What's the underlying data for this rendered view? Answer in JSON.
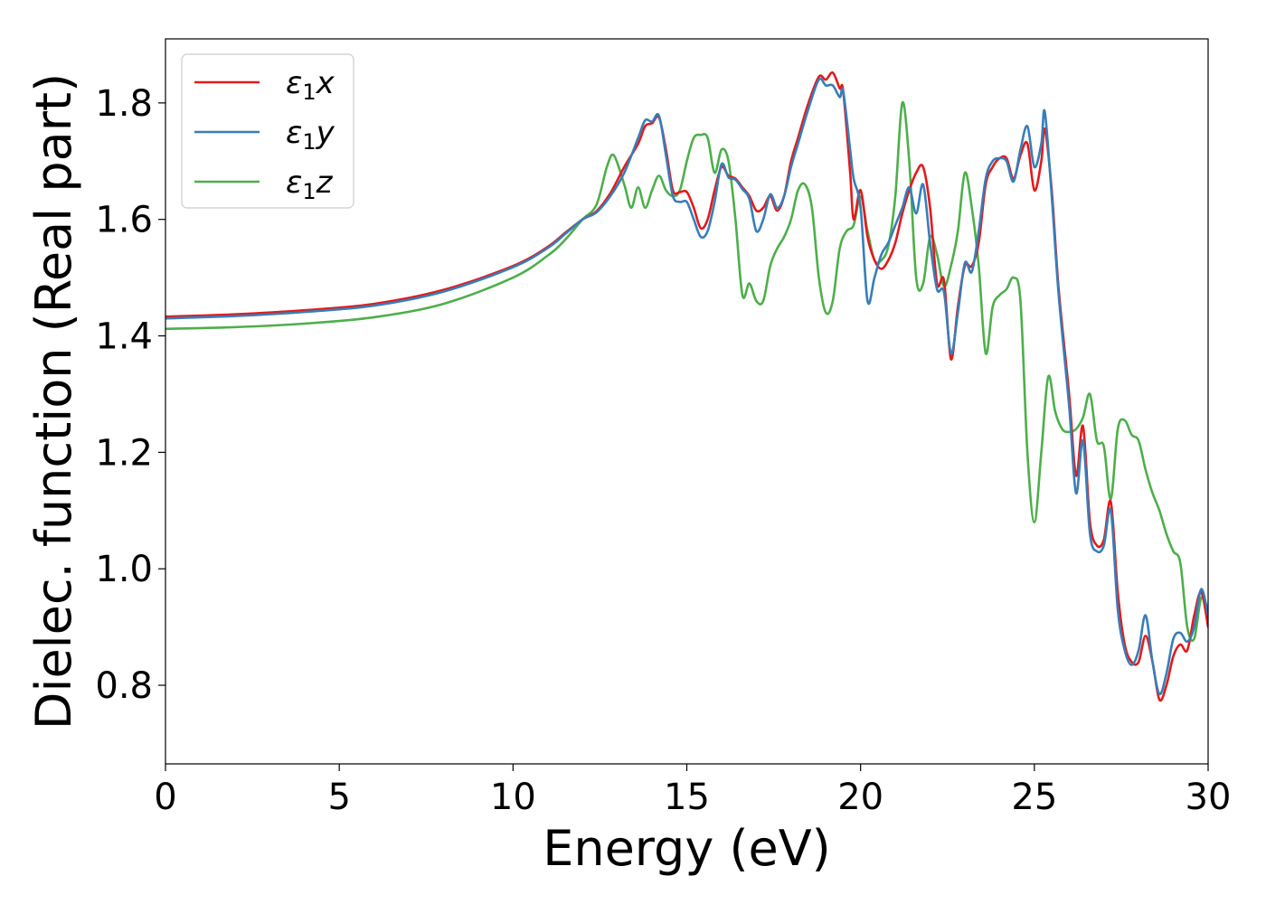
{
  "chart_data": {
    "type": "line",
    "title": "",
    "xlabel": "Energy (eV)",
    "ylabel": "Dielec. function (Real part)",
    "xlim": [
      0,
      30
    ],
    "ylim": [
      0.665,
      1.91
    ],
    "xticks": [
      0,
      5,
      10,
      15,
      20,
      25,
      30
    ],
    "yticks": [
      0.8,
      1.0,
      1.2,
      1.4,
      1.6,
      1.8
    ],
    "grid": false,
    "legend_position": "top-left",
    "series": [
      {
        "name": "ε1x",
        "legend_base": "ε",
        "legend_sub": "1",
        "legend_suffix": "x",
        "color": "#e41a1c",
        "points": [
          [
            0,
            1.433
          ],
          [
            2,
            1.437
          ],
          [
            4,
            1.444
          ],
          [
            6,
            1.455
          ],
          [
            8,
            1.479
          ],
          [
            10,
            1.52
          ],
          [
            11,
            1.553
          ],
          [
            11.5,
            1.577
          ],
          [
            12,
            1.6
          ],
          [
            12.4,
            1.614
          ],
          [
            12.8,
            1.645
          ],
          [
            13.2,
            1.69
          ],
          [
            13.6,
            1.73
          ],
          [
            13.8,
            1.76
          ],
          [
            14,
            1.765
          ],
          [
            14.2,
            1.775
          ],
          [
            14.4,
            1.72
          ],
          [
            14.6,
            1.65
          ],
          [
            14.8,
            1.647
          ],
          [
            15,
            1.647
          ],
          [
            15.2,
            1.62
          ],
          [
            15.4,
            1.585
          ],
          [
            15.6,
            1.6
          ],
          [
            15.8,
            1.65
          ],
          [
            16,
            1.69
          ],
          [
            16.2,
            1.675
          ],
          [
            16.4,
            1.67
          ],
          [
            16.6,
            1.655
          ],
          [
            16.8,
            1.64
          ],
          [
            17,
            1.615
          ],
          [
            17.2,
            1.62
          ],
          [
            17.4,
            1.64
          ],
          [
            17.6,
            1.615
          ],
          [
            17.8,
            1.64
          ],
          [
            18,
            1.7
          ],
          [
            18.2,
            1.74
          ],
          [
            18.5,
            1.8
          ],
          [
            18.8,
            1.845
          ],
          [
            19,
            1.84
          ],
          [
            19.2,
            1.852
          ],
          [
            19.4,
            1.825
          ],
          [
            19.5,
            1.82
          ],
          [
            19.7,
            1.68
          ],
          [
            19.8,
            1.6
          ],
          [
            20,
            1.65
          ],
          [
            20.2,
            1.57
          ],
          [
            20.4,
            1.53
          ],
          [
            20.6,
            1.515
          ],
          [
            20.8,
            1.53
          ],
          [
            21,
            1.56
          ],
          [
            21.2,
            1.61
          ],
          [
            21.4,
            1.65
          ],
          [
            21.6,
            1.68
          ],
          [
            21.8,
            1.69
          ],
          [
            22,
            1.62
          ],
          [
            22.2,
            1.49
          ],
          [
            22.4,
            1.495
          ],
          [
            22.6,
            1.36
          ],
          [
            22.8,
            1.45
          ],
          [
            23,
            1.52
          ],
          [
            23.2,
            1.52
          ],
          [
            23.4,
            1.56
          ],
          [
            23.6,
            1.66
          ],
          [
            23.8,
            1.69
          ],
          [
            24,
            1.705
          ],
          [
            24.2,
            1.705
          ],
          [
            24.4,
            1.67
          ],
          [
            24.6,
            1.71
          ],
          [
            24.8,
            1.73
          ],
          [
            25,
            1.65
          ],
          [
            25.2,
            1.7
          ],
          [
            25.3,
            1.755
          ],
          [
            25.5,
            1.65
          ],
          [
            25.7,
            1.48
          ],
          [
            26,
            1.3
          ],
          [
            26.2,
            1.16
          ],
          [
            26.4,
            1.245
          ],
          [
            26.6,
            1.08
          ],
          [
            26.8,
            1.04
          ],
          [
            27,
            1.05
          ],
          [
            27.2,
            1.115
          ],
          [
            27.4,
            0.96
          ],
          [
            27.6,
            0.87
          ],
          [
            27.8,
            0.84
          ],
          [
            28,
            0.84
          ],
          [
            28.2,
            0.885
          ],
          [
            28.4,
            0.84
          ],
          [
            28.6,
            0.775
          ],
          [
            28.8,
            0.8
          ],
          [
            29,
            0.85
          ],
          [
            29.2,
            0.87
          ],
          [
            29.4,
            0.86
          ],
          [
            29.6,
            0.92
          ],
          [
            29.8,
            0.96
          ],
          [
            30,
            0.9
          ]
        ]
      },
      {
        "name": "ε1y",
        "legend_base": "ε",
        "legend_sub": "1",
        "legend_suffix": "y",
        "color": "#377eb8",
        "points": [
          [
            0,
            1.43
          ],
          [
            2,
            1.434
          ],
          [
            4,
            1.441
          ],
          [
            6,
            1.452
          ],
          [
            8,
            1.476
          ],
          [
            10,
            1.518
          ],
          [
            11,
            1.551
          ],
          [
            11.5,
            1.575
          ],
          [
            12,
            1.6
          ],
          [
            12.4,
            1.612
          ],
          [
            12.8,
            1.64
          ],
          [
            13.2,
            1.68
          ],
          [
            13.6,
            1.74
          ],
          [
            13.8,
            1.77
          ],
          [
            14,
            1.768
          ],
          [
            14.2,
            1.778
          ],
          [
            14.4,
            1.71
          ],
          [
            14.6,
            1.64
          ],
          [
            14.8,
            1.63
          ],
          [
            15,
            1.63
          ],
          [
            15.2,
            1.6
          ],
          [
            15.4,
            1.57
          ],
          [
            15.6,
            1.58
          ],
          [
            15.8,
            1.63
          ],
          [
            16,
            1.695
          ],
          [
            16.2,
            1.672
          ],
          [
            16.4,
            1.668
          ],
          [
            16.6,
            1.652
          ],
          [
            16.8,
            1.635
          ],
          [
            17,
            1.58
          ],
          [
            17.2,
            1.6
          ],
          [
            17.4,
            1.643
          ],
          [
            17.6,
            1.62
          ],
          [
            17.8,
            1.64
          ],
          [
            18,
            1.69
          ],
          [
            18.2,
            1.73
          ],
          [
            18.5,
            1.79
          ],
          [
            18.8,
            1.84
          ],
          [
            19,
            1.83
          ],
          [
            19.2,
            1.83
          ],
          [
            19.4,
            1.81
          ],
          [
            19.5,
            1.82
          ],
          [
            19.7,
            1.72
          ],
          [
            19.8,
            1.67
          ],
          [
            20,
            1.62
          ],
          [
            20.2,
            1.46
          ],
          [
            20.4,
            1.5
          ],
          [
            20.6,
            1.54
          ],
          [
            20.8,
            1.56
          ],
          [
            21,
            1.59
          ],
          [
            21.2,
            1.62
          ],
          [
            21.4,
            1.655
          ],
          [
            21.6,
            1.61
          ],
          [
            21.8,
            1.66
          ],
          [
            22,
            1.56
          ],
          [
            22.2,
            1.48
          ],
          [
            22.4,
            1.475
          ],
          [
            22.6,
            1.37
          ],
          [
            22.8,
            1.44
          ],
          [
            23,
            1.525
          ],
          [
            23.2,
            1.51
          ],
          [
            23.4,
            1.58
          ],
          [
            23.6,
            1.67
          ],
          [
            23.8,
            1.7
          ],
          [
            24,
            1.705
          ],
          [
            24.2,
            1.7
          ],
          [
            24.4,
            1.665
          ],
          [
            24.6,
            1.72
          ],
          [
            24.8,
            1.76
          ],
          [
            25,
            1.69
          ],
          [
            25.2,
            1.73
          ],
          [
            25.3,
            1.785
          ],
          [
            25.5,
            1.64
          ],
          [
            25.7,
            1.47
          ],
          [
            26,
            1.28
          ],
          [
            26.2,
            1.13
          ],
          [
            26.4,
            1.22
          ],
          [
            26.6,
            1.06
          ],
          [
            26.8,
            1.03
          ],
          [
            27,
            1.04
          ],
          [
            27.2,
            1.1
          ],
          [
            27.4,
            0.93
          ],
          [
            27.6,
            0.86
          ],
          [
            27.8,
            0.835
          ],
          [
            28,
            0.86
          ],
          [
            28.2,
            0.92
          ],
          [
            28.4,
            0.84
          ],
          [
            28.6,
            0.785
          ],
          [
            28.8,
            0.82
          ],
          [
            29,
            0.88
          ],
          [
            29.2,
            0.89
          ],
          [
            29.4,
            0.875
          ],
          [
            29.6,
            0.9
          ],
          [
            29.8,
            0.965
          ],
          [
            30,
            0.92
          ]
        ]
      },
      {
        "name": "ε1z",
        "legend_base": "ε",
        "legend_sub": "1",
        "legend_suffix": "z",
        "color": "#4daf4a",
        "points": [
          [
            0,
            1.412
          ],
          [
            2,
            1.415
          ],
          [
            4,
            1.421
          ],
          [
            6,
            1.432
          ],
          [
            8,
            1.455
          ],
          [
            10,
            1.5
          ],
          [
            11,
            1.538
          ],
          [
            11.5,
            1.565
          ],
          [
            12,
            1.6
          ],
          [
            12.4,
            1.625
          ],
          [
            12.7,
            1.69
          ],
          [
            12.9,
            1.71
          ],
          [
            13.2,
            1.66
          ],
          [
            13.4,
            1.62
          ],
          [
            13.6,
            1.655
          ],
          [
            13.8,
            1.62
          ],
          [
            14,
            1.65
          ],
          [
            14.2,
            1.675
          ],
          [
            14.4,
            1.65
          ],
          [
            14.6,
            1.64
          ],
          [
            14.8,
            1.65
          ],
          [
            15,
            1.7
          ],
          [
            15.2,
            1.74
          ],
          [
            15.4,
            1.745
          ],
          [
            15.6,
            1.74
          ],
          [
            15.8,
            1.68
          ],
          [
            16,
            1.72
          ],
          [
            16.2,
            1.7
          ],
          [
            16.4,
            1.6
          ],
          [
            16.6,
            1.47
          ],
          [
            16.8,
            1.49
          ],
          [
            17,
            1.46
          ],
          [
            17.2,
            1.46
          ],
          [
            17.4,
            1.52
          ],
          [
            17.6,
            1.55
          ],
          [
            17.8,
            1.57
          ],
          [
            18,
            1.6
          ],
          [
            18.2,
            1.65
          ],
          [
            18.4,
            1.66
          ],
          [
            18.6,
            1.62
          ],
          [
            18.8,
            1.5
          ],
          [
            19,
            1.44
          ],
          [
            19.2,
            1.46
          ],
          [
            19.4,
            1.55
          ],
          [
            19.6,
            1.58
          ],
          [
            19.8,
            1.59
          ],
          [
            20,
            1.64
          ],
          [
            20.2,
            1.58
          ],
          [
            20.4,
            1.53
          ],
          [
            20.6,
            1.53
          ],
          [
            20.8,
            1.555
          ],
          [
            21,
            1.64
          ],
          [
            21.2,
            1.8
          ],
          [
            21.4,
            1.7
          ],
          [
            21.6,
            1.5
          ],
          [
            21.8,
            1.49
          ],
          [
            22,
            1.57
          ],
          [
            22.2,
            1.54
          ],
          [
            22.4,
            1.485
          ],
          [
            22.6,
            1.52
          ],
          [
            22.8,
            1.58
          ],
          [
            23,
            1.68
          ],
          [
            23.2,
            1.62
          ],
          [
            23.4,
            1.52
          ],
          [
            23.6,
            1.37
          ],
          [
            23.8,
            1.45
          ],
          [
            24,
            1.47
          ],
          [
            24.2,
            1.48
          ],
          [
            24.4,
            1.5
          ],
          [
            24.6,
            1.46
          ],
          [
            24.8,
            1.2
          ],
          [
            25,
            1.08
          ],
          [
            25.2,
            1.2
          ],
          [
            25.4,
            1.33
          ],
          [
            25.6,
            1.27
          ],
          [
            25.8,
            1.24
          ],
          [
            26,
            1.235
          ],
          [
            26.2,
            1.24
          ],
          [
            26.4,
            1.26
          ],
          [
            26.6,
            1.3
          ],
          [
            26.8,
            1.22
          ],
          [
            27,
            1.21
          ],
          [
            27.2,
            1.12
          ],
          [
            27.4,
            1.24
          ],
          [
            27.6,
            1.255
          ],
          [
            27.8,
            1.23
          ],
          [
            28,
            1.22
          ],
          [
            28.2,
            1.17
          ],
          [
            28.4,
            1.13
          ],
          [
            28.6,
            1.1
          ],
          [
            28.8,
            1.06
          ],
          [
            29,
            1.03
          ],
          [
            29.2,
            1.01
          ],
          [
            29.4,
            0.9
          ],
          [
            29.6,
            0.88
          ],
          [
            29.8,
            0.95
          ],
          [
            30,
            0.93
          ]
        ]
      }
    ]
  }
}
